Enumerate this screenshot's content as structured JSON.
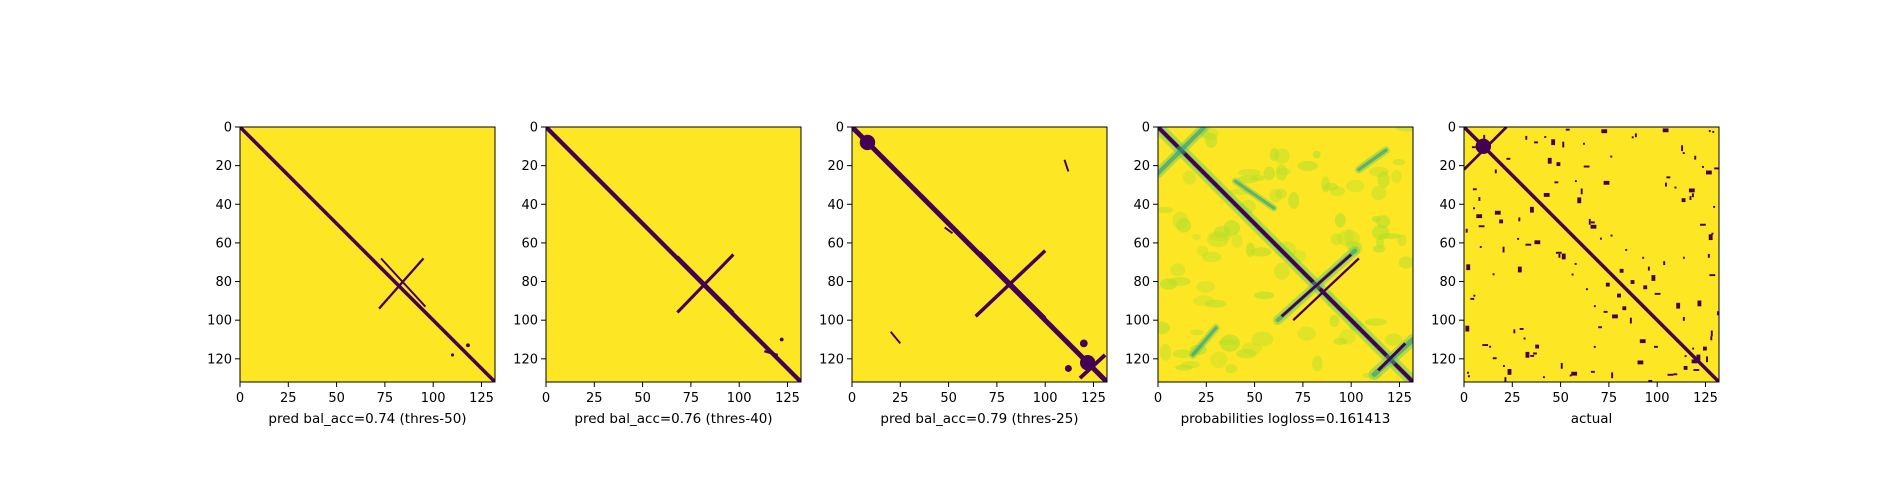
{
  "colors": {
    "background": "#fde725",
    "contact": "#440154",
    "mid_teal": "#21918c",
    "mid_green": "#5ec962",
    "light_green": "#b5de2b",
    "frame": "#000000"
  },
  "chart_data": [
    {
      "type": "heatmap",
      "xlabel": "pred bal_acc=0.74 (thres-50)",
      "xlim": [
        0,
        132
      ],
      "ylim": [
        0,
        132
      ],
      "x_ticks": [
        "0",
        "25",
        "50",
        "75",
        "100",
        "125"
      ],
      "y_ticks": [
        "0",
        "20",
        "40",
        "60",
        "80",
        "100",
        "120"
      ],
      "x_tick_values": [
        0,
        25,
        50,
        75,
        100,
        125
      ],
      "y_tick_values": [
        0,
        20,
        40,
        60,
        80,
        100,
        120
      ],
      "y_inverted": true,
      "features": [
        {
          "kind": "band",
          "from": [
            0,
            0
          ],
          "to": [
            132,
            132
          ],
          "width": 1.8
        },
        {
          "kind": "band",
          "from": [
            72,
            94
          ],
          "to": [
            95,
            68
          ],
          "width": 1.2
        },
        {
          "kind": "band",
          "from": [
            73,
            68
          ],
          "to": [
            96,
            93
          ],
          "width": 1.0
        },
        {
          "kind": "blob",
          "center": [
            118,
            113
          ],
          "r": 1.0
        },
        {
          "kind": "blob",
          "center": [
            110,
            118
          ],
          "r": 0.8
        }
      ]
    },
    {
      "type": "heatmap",
      "xlabel": "pred bal_acc=0.76 (thres-40)",
      "xlim": [
        0,
        132
      ],
      "ylim": [
        0,
        132
      ],
      "x_ticks": [
        "0",
        "25",
        "50",
        "75",
        "100",
        "125"
      ],
      "y_ticks": [
        "0",
        "20",
        "40",
        "60",
        "80",
        "100",
        "120"
      ],
      "x_tick_values": [
        0,
        25,
        50,
        75,
        100,
        125
      ],
      "y_tick_values": [
        0,
        20,
        40,
        60,
        80,
        100,
        120
      ],
      "y_inverted": true,
      "features": [
        {
          "kind": "band",
          "from": [
            0,
            0
          ],
          "to": [
            132,
            132
          ],
          "width": 2.2
        },
        {
          "kind": "band",
          "from": [
            68,
            96
          ],
          "to": [
            97,
            66
          ],
          "width": 1.6
        },
        {
          "kind": "band",
          "from": [
            68,
            67
          ],
          "to": [
            97,
            96
          ],
          "width": 1.4
        },
        {
          "kind": "band",
          "from": [
            113,
            116
          ],
          "to": [
            120,
            118
          ],
          "width": 1.2
        },
        {
          "kind": "blob",
          "center": [
            122,
            110
          ],
          "r": 1.0
        }
      ]
    },
    {
      "type": "heatmap",
      "xlabel": "pred bal_acc=0.79 (thres-25)",
      "xlim": [
        0,
        132
      ],
      "ylim": [
        0,
        132
      ],
      "x_ticks": [
        "0",
        "25",
        "50",
        "75",
        "100",
        "125"
      ],
      "y_ticks": [
        "0",
        "20",
        "40",
        "60",
        "80",
        "100",
        "120"
      ],
      "x_tick_values": [
        0,
        25,
        50,
        75,
        100,
        125
      ],
      "y_tick_values": [
        0,
        20,
        40,
        60,
        80,
        100,
        120
      ],
      "y_inverted": true,
      "features": [
        {
          "kind": "band",
          "from": [
            0,
            0
          ],
          "to": [
            132,
            132
          ],
          "width": 2.6
        },
        {
          "kind": "band",
          "from": [
            64,
            98
          ],
          "to": [
            100,
            64
          ],
          "width": 1.8
        },
        {
          "kind": "band",
          "from": [
            66,
            65
          ],
          "to": [
            100,
            99
          ],
          "width": 1.8
        },
        {
          "kind": "band",
          "from": [
            118,
            130
          ],
          "to": [
            131,
            118
          ],
          "width": 2.0
        },
        {
          "kind": "blob",
          "center": [
            8,
            8
          ],
          "r": 4.0
        },
        {
          "kind": "blob",
          "center": [
            122,
            122
          ],
          "r": 4.0
        },
        {
          "kind": "blob",
          "center": [
            120,
            112
          ],
          "r": 2.0
        },
        {
          "kind": "blob",
          "center": [
            112,
            125
          ],
          "r": 1.8
        },
        {
          "kind": "band",
          "from": [
            20,
            106
          ],
          "to": [
            25,
            112
          ],
          "width": 1.0
        },
        {
          "kind": "band",
          "from": [
            110,
            17
          ],
          "to": [
            112,
            23
          ],
          "width": 1.0
        },
        {
          "kind": "band",
          "from": [
            48,
            52
          ],
          "to": [
            52,
            55
          ],
          "width": 1.0
        }
      ]
    },
    {
      "type": "heatmap",
      "xlabel": "probabilities logloss=0.161413",
      "xlim": [
        0,
        132
      ],
      "ylim": [
        0,
        132
      ],
      "x_ticks": [
        "0",
        "25",
        "50",
        "75",
        "100",
        "125"
      ],
      "y_ticks": [
        "0",
        "20",
        "40",
        "60",
        "80",
        "100",
        "120"
      ],
      "x_tick_values": [
        0,
        25,
        50,
        75,
        100,
        125
      ],
      "y_tick_values": [
        0,
        20,
        40,
        60,
        80,
        100,
        120
      ],
      "y_inverted": true,
      "features": [
        {
          "kind": "haze",
          "count": 90,
          "seed": 7
        },
        {
          "kind": "soft_band",
          "from": [
            0,
            0
          ],
          "to": [
            132,
            132
          ],
          "width": 6.0
        },
        {
          "kind": "band",
          "from": [
            0,
            0
          ],
          "to": [
            132,
            132
          ],
          "width": 2.0
        },
        {
          "kind": "soft_band",
          "from": [
            62,
            100
          ],
          "to": [
            102,
            64
          ],
          "width": 5.0
        },
        {
          "kind": "band",
          "from": [
            64,
            98
          ],
          "to": [
            100,
            66
          ],
          "width": 1.4
        },
        {
          "kind": "band",
          "from": [
            70,
            100
          ],
          "to": [
            104,
            68
          ],
          "width": 1.2
        },
        {
          "kind": "soft_band",
          "from": [
            112,
            128
          ],
          "to": [
            132,
            110
          ],
          "width": 6.0
        },
        {
          "kind": "band",
          "from": [
            114,
            126
          ],
          "to": [
            128,
            112
          ],
          "width": 1.6
        },
        {
          "kind": "soft_band",
          "from": [
            0,
            24
          ],
          "to": [
            24,
            0
          ],
          "width": 5.0
        },
        {
          "kind": "soft_band",
          "from": [
            18,
            118
          ],
          "to": [
            30,
            104
          ],
          "width": 4.0
        },
        {
          "kind": "soft_band",
          "from": [
            104,
            22
          ],
          "to": [
            118,
            12
          ],
          "width": 4.0
        },
        {
          "kind": "soft_band",
          "from": [
            40,
            28
          ],
          "to": [
            60,
            42
          ],
          "width": 3.5
        }
      ]
    },
    {
      "type": "heatmap",
      "xlabel": "actual",
      "xlim": [
        0,
        132
      ],
      "ylim": [
        0,
        132
      ],
      "x_ticks": [
        "0",
        "25",
        "50",
        "75",
        "100",
        "125"
      ],
      "y_ticks": [
        "0",
        "20",
        "40",
        "60",
        "80",
        "100",
        "120"
      ],
      "x_tick_values": [
        0,
        25,
        50,
        75,
        100,
        125
      ],
      "y_tick_values": [
        0,
        20,
        40,
        60,
        80,
        100,
        120
      ],
      "y_inverted": true,
      "features": [
        {
          "kind": "band",
          "from": [
            0,
            0
          ],
          "to": [
            132,
            132
          ],
          "width": 1.8
        },
        {
          "kind": "band",
          "from": [
            0,
            22
          ],
          "to": [
            22,
            0
          ],
          "width": 1.4
        },
        {
          "kind": "blob",
          "center": [
            10,
            10
          ],
          "r": 4.0
        },
        {
          "kind": "scatter",
          "count": 70,
          "seed": 13
        }
      ]
    }
  ]
}
